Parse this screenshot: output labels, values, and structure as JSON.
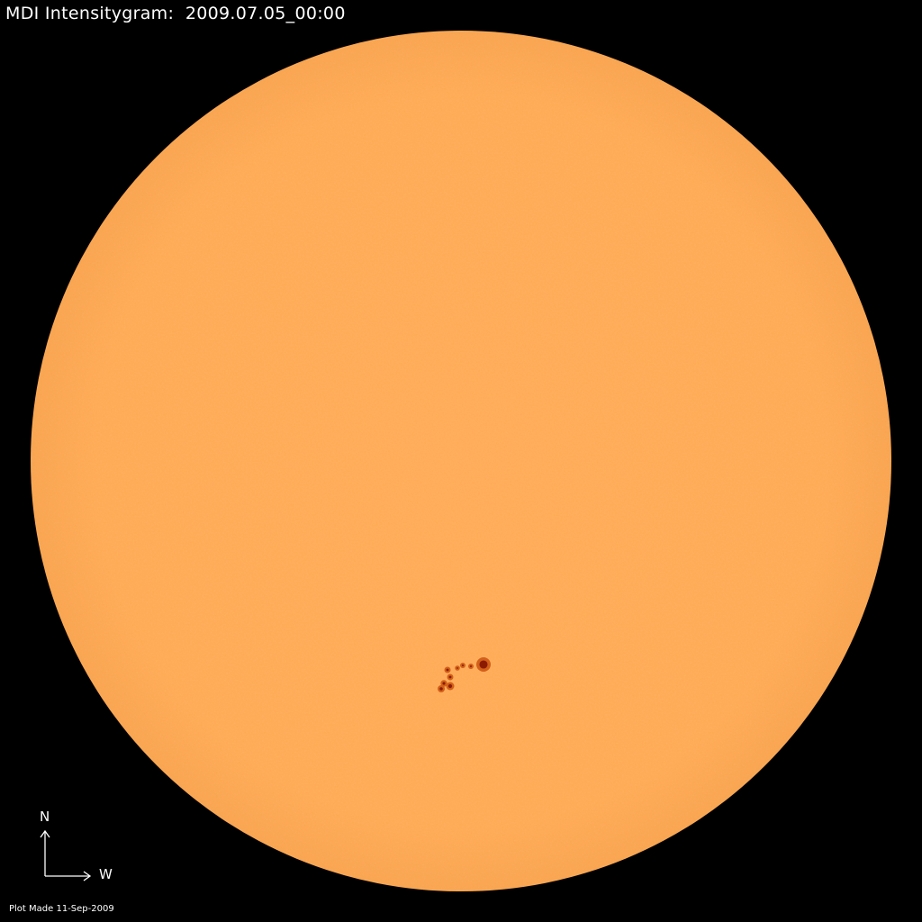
{
  "title": "MDI Intensitygram:  2009.07.05_00:00",
  "orientation": {
    "north_label": "N",
    "west_label": "W"
  },
  "footer": "Plot Made 11-Sep-2009",
  "colors": {
    "background": "#000000",
    "disk": "#FFAA55",
    "sunspot_umbra": "#8A1A00",
    "sunspot_penumbra": "#D2601A",
    "text": "#FFFFFF"
  }
}
